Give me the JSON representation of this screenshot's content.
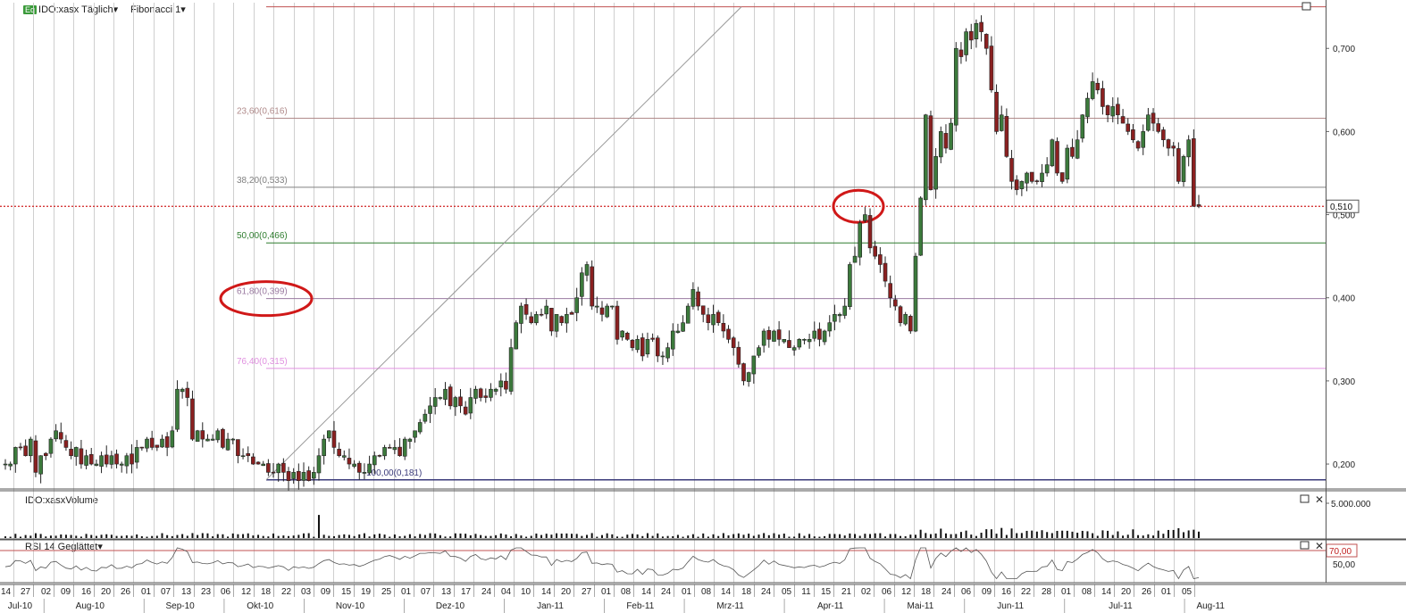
{
  "header": {
    "badge": "Eq",
    "symbol_label": "IDO:xasx Täglich",
    "fib_label": "Fibonacci 1"
  },
  "volume_panel": {
    "title": "IDO:xasxVolume",
    "axis_label": "5.000.000"
  },
  "rsi_panel": {
    "title": "RSI 14 Geglättet",
    "level_label": "70,00",
    "axis_label": "50,00"
  },
  "colors": {
    "up": "#3c7a3c",
    "down": "#8a2020",
    "grid": "#cfcfcf",
    "fib_top": "#c05050",
    "fib_236": "#b08a8a",
    "fib_382": "#808080",
    "fib_50": "#2e7d2e",
    "fib_618": "#9a7aa0",
    "fib_764": "#e090e0",
    "fib_100": "#3a3a7a",
    "current_price": "#d02020",
    "ellipse": "#d01818"
  },
  "chart_data": {
    "type": "candlestick",
    "series_name": "IDO:xasx",
    "yrange": [
      0.17,
      0.755
    ],
    "y_ticks": [
      "0,200",
      "0,300",
      "0,400",
      "0,500",
      "0,600",
      "0,700"
    ],
    "current_price_label": "0,510",
    "current_price": 0.51,
    "fibonacci": [
      {
        "label": "23,60(0,616)",
        "level": 0.616
      },
      {
        "label": "38,20(0,533)",
        "level": 0.533
      },
      {
        "label": "50,00(0,466)",
        "level": 0.466
      },
      {
        "label": "61,80(0,399)",
        "level": 0.399
      },
      {
        "label": "76,40(0,315)",
        "level": 0.315
      },
      {
        "label": "100,00(0,181)",
        "level": 0.181
      }
    ],
    "fib_top_level": 0.75,
    "day_ticks": [
      "14",
      "27",
      "02",
      "09",
      "16",
      "20",
      "26",
      "01",
      "07",
      "13",
      "23",
      "06",
      "12",
      "18",
      "22",
      "03",
      "09",
      "15",
      "19",
      "25",
      "01",
      "07",
      "13",
      "17",
      "24",
      "04",
      "10",
      "14",
      "20",
      "27",
      "01",
      "08",
      "14",
      "24",
      "01",
      "08",
      "14",
      "18",
      "24",
      "05",
      "11",
      "15",
      "21",
      "02",
      "06",
      "12",
      "18",
      "24",
      "06",
      "09",
      "16",
      "22",
      "28",
      "01",
      "08",
      "14",
      "20",
      "26",
      "01",
      "05"
    ],
    "month_labels": [
      "Jul-10",
      "Aug-10",
      "Sep-10",
      "Okt-10",
      "Nov-10",
      "Dez-10",
      "Jan-11",
      "Feb-11",
      "Mrz-11",
      "Apr-11",
      "Mai-11",
      "Jun-11",
      "Jul-11",
      "Aug-11"
    ],
    "closes": [
      0.2,
      0.2,
      0.22,
      0.22,
      0.21,
      0.23,
      0.19,
      0.21,
      0.21,
      0.23,
      0.24,
      0.23,
      0.22,
      0.21,
      0.22,
      0.2,
      0.21,
      0.2,
      0.2,
      0.21,
      0.2,
      0.21,
      0.2,
      0.2,
      0.21,
      0.2,
      0.22,
      0.22,
      0.23,
      0.22,
      0.22,
      0.23,
      0.22,
      0.24,
      0.29,
      0.29,
      0.28,
      0.23,
      0.24,
      0.23,
      0.23,
      0.23,
      0.24,
      0.22,
      0.23,
      0.23,
      0.21,
      0.21,
      0.21,
      0.2,
      0.2,
      0.2,
      0.19,
      0.19,
      0.2,
      0.19,
      0.18,
      0.19,
      0.18,
      0.19,
      0.18,
      0.19,
      0.21,
      0.23,
      0.24,
      0.22,
      0.21,
      0.21,
      0.2,
      0.2,
      0.19,
      0.19,
      0.2,
      0.21,
      0.21,
      0.22,
      0.22,
      0.22,
      0.21,
      0.23,
      0.23,
      0.24,
      0.25,
      0.26,
      0.27,
      0.28,
      0.28,
      0.29,
      0.27,
      0.28,
      0.27,
      0.26,
      0.28,
      0.29,
      0.28,
      0.28,
      0.29,
      0.29,
      0.3,
      0.29,
      0.34,
      0.37,
      0.39,
      0.38,
      0.37,
      0.38,
      0.38,
      0.39,
      0.36,
      0.38,
      0.37,
      0.38,
      0.38,
      0.4,
      0.43,
      0.44,
      0.39,
      0.39,
      0.38,
      0.39,
      0.39,
      0.35,
      0.36,
      0.35,
      0.34,
      0.35,
      0.33,
      0.35,
      0.35,
      0.33,
      0.33,
      0.34,
      0.36,
      0.36,
      0.37,
      0.39,
      0.41,
      0.39,
      0.38,
      0.37,
      0.38,
      0.37,
      0.36,
      0.35,
      0.34,
      0.32,
      0.3,
      0.31,
      0.33,
      0.34,
      0.36,
      0.35,
      0.36,
      0.35,
      0.35,
      0.34,
      0.34,
      0.35,
      0.35,
      0.35,
      0.36,
      0.35,
      0.36,
      0.37,
      0.38,
      0.38,
      0.39,
      0.44,
      0.45,
      0.49,
      0.5,
      0.46,
      0.45,
      0.44,
      0.42,
      0.4,
      0.39,
      0.37,
      0.38,
      0.36,
      0.45,
      0.52,
      0.62,
      0.53,
      0.57,
      0.6,
      0.58,
      0.61,
      0.7,
      0.69,
      0.72,
      0.71,
      0.73,
      0.72,
      0.7,
      0.65,
      0.6,
      0.62,
      0.57,
      0.54,
      0.53,
      0.54,
      0.55,
      0.54,
      0.54,
      0.55,
      0.56,
      0.59,
      0.55,
      0.54,
      0.58,
      0.57,
      0.59,
      0.62,
      0.64,
      0.66,
      0.65,
      0.63,
      0.62,
      0.63,
      0.62,
      0.61,
      0.6,
      0.59,
      0.58,
      0.6,
      0.62,
      0.61,
      0.6,
      0.59,
      0.58,
      0.58,
      0.54,
      0.57,
      0.59,
      0.51,
      0.51
    ]
  }
}
